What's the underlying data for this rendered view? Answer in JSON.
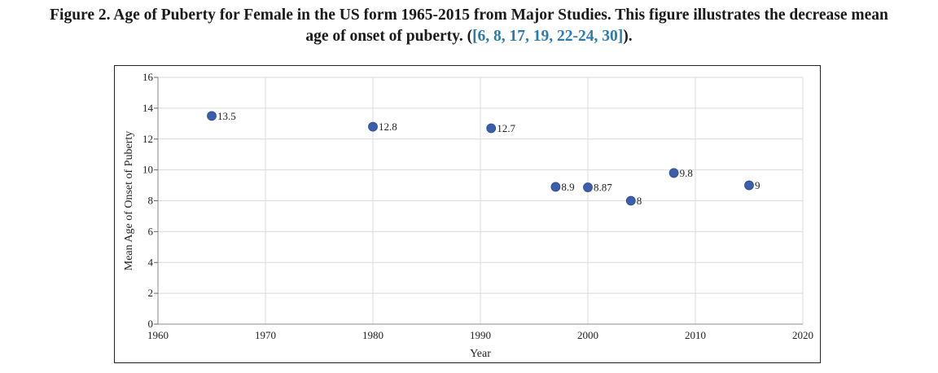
{
  "caption": {
    "prefix": "Figure 2. Age of Puberty for Female in the US form 1965-2015 from Major Studies. This figure illustrates the decrease mean",
    "line2_start": "age of onset of puberty. (",
    "refs": "[6, 8, 17, 19, 22-24, 30]",
    "line2_end": ")."
  },
  "chart_data": {
    "type": "scatter",
    "xlabel": "Year",
    "ylabel": "Mean Age of Onset of Puberty",
    "xlim": [
      1960,
      2020
    ],
    "ylim": [
      0,
      16
    ],
    "xticks": [
      1960,
      1970,
      1980,
      1990,
      2000,
      2010,
      2020
    ],
    "yticks": [
      0,
      2,
      4,
      6,
      8,
      10,
      12,
      14,
      16
    ],
    "grid": true,
    "marker_color": "#3b5fad",
    "points": [
      {
        "x": 1965,
        "y": 13.5,
        "label": "13.5"
      },
      {
        "x": 1980,
        "y": 12.8,
        "label": "12.8"
      },
      {
        "x": 1991,
        "y": 12.7,
        "label": "12.7"
      },
      {
        "x": 1997,
        "y": 8.9,
        "label": "8.9"
      },
      {
        "x": 2000,
        "y": 8.87,
        "label": "8.87"
      },
      {
        "x": 2004,
        "y": 8,
        "label": "8"
      },
      {
        "x": 2008,
        "y": 9.8,
        "label": "9.8"
      },
      {
        "x": 2015,
        "y": 9,
        "label": "9"
      }
    ]
  }
}
